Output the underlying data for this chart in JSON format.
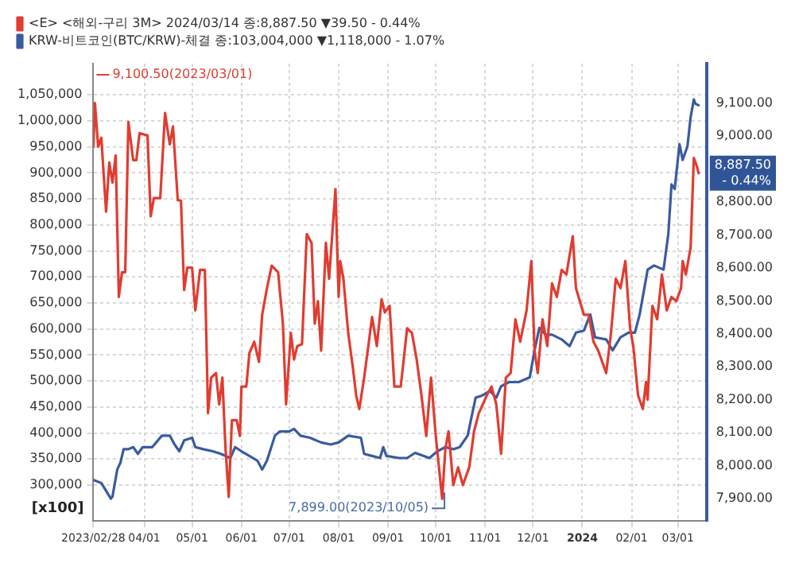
{
  "chart_data": {
    "type": "line",
    "legend": "top left",
    "grid": true,
    "marker": "none",
    "line_style": "solid",
    "xlim": [
      "2023-02-28",
      "2024-03-19"
    ],
    "xticks": [
      {
        "value": "2023-02-28",
        "label": "2023/02/28"
      },
      {
        "value": "2023-04-01",
        "label": "04/01"
      },
      {
        "value": "2023-05-01",
        "label": "05/01"
      },
      {
        "value": "2023-06-01",
        "label": "06/01"
      },
      {
        "value": "2023-07-01",
        "label": "07/01"
      },
      {
        "value": "2023-08-01",
        "label": "08/01"
      },
      {
        "value": "2023-09-01",
        "label": "09/01"
      },
      {
        "value": "2023-10-01",
        "label": "10/01"
      },
      {
        "value": "2023-11-01",
        "label": "11/01"
      },
      {
        "value": "2023-12-01",
        "label": "12/01"
      },
      {
        "value": "2024-01-01",
        "label": "2024"
      },
      {
        "value": "2024-02-01",
        "label": "02/01"
      },
      {
        "value": "2024-03-01",
        "label": "03/01"
      }
    ],
    "ylim": [
      231000,
      1110000
    ],
    "yticks": [
      {
        "value": 300000,
        "label": "300,000"
      },
      {
        "value": 350000,
        "label": "350,000"
      },
      {
        "value": 400000,
        "label": "400,000"
      },
      {
        "value": 450000,
        "label": "450,000"
      },
      {
        "value": 500000,
        "label": "500,000"
      },
      {
        "value": 550000,
        "label": "550,000"
      },
      {
        "value": 600000,
        "label": "600,000"
      },
      {
        "value": 650000,
        "label": "650,000"
      },
      {
        "value": 700000,
        "label": "700,000"
      },
      {
        "value": 750000,
        "label": "750,000"
      },
      {
        "value": 800000,
        "label": "800,000"
      },
      {
        "value": 850000,
        "label": "850,000"
      },
      {
        "value": 900000,
        "label": "900,000"
      },
      {
        "value": 950000,
        "label": "950,000"
      },
      {
        "value": 1000000,
        "label": "1,000,000"
      },
      {
        "value": 1050000,
        "label": "1,050,000"
      }
    ],
    "y2lim": [
      7832,
      9220
    ],
    "y2ticks": [
      {
        "value": 7900,
        "label": "7,900.00"
      },
      {
        "value": 8000,
        "label": "8,000.00"
      },
      {
        "value": 8100,
        "label": "8,100.00"
      },
      {
        "value": 8200,
        "label": "8,200.00"
      },
      {
        "value": 8300,
        "label": "8,300.00"
      },
      {
        "value": 8400,
        "label": "8,400.00"
      },
      {
        "value": 8500,
        "label": "8,500.00"
      },
      {
        "value": 8600,
        "label": "8,600.00"
      },
      {
        "value": 8700,
        "label": "8,700.00"
      },
      {
        "value": 8800,
        "label": "8,800.00"
      },
      {
        "value": 9000,
        "label": "9,000.00"
      },
      {
        "value": 9100,
        "label": "9,100.00"
      }
    ],
    "series": [
      {
        "name": "<E> <해외-구리 3M> 2024/03/14 종:8,887.50 ▼39.50 - 0.44%",
        "color": "#e03c31",
        "axis": "y2",
        "x": [
          "2023-02-28",
          "2023-03-01",
          "2023-03-03",
          "2023-03-05",
          "2023-03-08",
          "2023-03-10",
          "2023-03-12",
          "2023-03-14",
          "2023-03-16",
          "2023-03-18",
          "2023-03-20",
          "2023-03-22",
          "2023-03-25",
          "2023-03-27",
          "2023-03-29",
          "2023-04-03",
          "2023-04-05",
          "2023-04-07",
          "2023-04-11",
          "2023-04-14",
          "2023-04-17",
          "2023-04-19",
          "2023-04-22",
          "2023-04-24",
          "2023-04-26",
          "2023-04-28",
          "2023-05-01",
          "2023-05-03",
          "2023-05-06",
          "2023-05-09",
          "2023-05-11",
          "2023-05-13",
          "2023-05-16",
          "2023-05-18",
          "2023-05-20",
          "2023-05-22",
          "2023-05-24",
          "2023-05-26",
          "2023-05-29",
          "2023-05-31",
          "2023-06-01",
          "2023-06-04",
          "2023-06-06",
          "2023-06-09",
          "2023-06-12",
          "2023-06-14",
          "2023-06-17",
          "2023-06-20",
          "2023-06-24",
          "2023-06-27",
          "2023-06-29",
          "2023-07-02",
          "2023-07-04",
          "2023-07-06",
          "2023-07-09",
          "2023-07-12",
          "2023-07-15",
          "2023-07-17",
          "2023-07-19",
          "2023-07-21",
          "2023-07-24",
          "2023-07-26",
          "2023-07-30",
          "2023-08-01",
          "2023-08-02",
          "2023-08-04",
          "2023-08-07",
          "2023-08-10",
          "2023-08-12",
          "2023-08-14",
          "2023-08-17",
          "2023-08-20",
          "2023-08-22",
          "2023-08-25",
          "2023-08-28",
          "2023-08-30",
          "2023-09-02",
          "2023-09-05",
          "2023-09-09",
          "2023-09-13",
          "2023-09-16",
          "2023-09-19",
          "2023-09-22",
          "2023-09-25",
          "2023-09-28",
          "2023-10-01",
          "2023-10-05",
          "2023-10-07",
          "2023-10-09",
          "2023-10-12",
          "2023-10-15",
          "2023-10-18",
          "2023-10-22",
          "2023-10-25",
          "2023-10-28",
          "2023-11-02",
          "2023-11-05",
          "2023-11-08",
          "2023-11-11",
          "2023-11-14",
          "2023-11-17",
          "2023-11-20",
          "2023-11-23",
          "2023-11-27",
          "2023-11-30",
          "2023-12-02",
          "2023-12-04",
          "2023-12-07",
          "2023-12-10",
          "2023-12-13",
          "2023-12-16",
          "2023-12-19",
          "2023-12-22",
          "2023-12-26",
          "2023-12-28",
          "2024-01-02",
          "2024-01-05",
          "2024-01-08",
          "2024-01-11",
          "2024-01-16",
          "2024-01-19",
          "2024-01-22",
          "2024-01-25",
          "2024-01-28",
          "2024-01-31",
          "2024-02-02",
          "2024-02-05",
          "2024-02-08",
          "2024-02-10",
          "2024-02-11",
          "2024-02-14",
          "2024-02-17",
          "2024-02-20",
          "2024-02-23",
          "2024-02-26",
          "2024-02-29",
          "2024-03-03",
          "2024-03-04",
          "2024-03-06",
          "2024-03-09",
          "2024-03-11",
          "2024-03-13",
          "2024-03-14"
        ],
        "values": [
          8968,
          9100.5,
          8968,
          8995,
          8771,
          8920,
          8859,
          8941,
          8512,
          8587,
          8587,
          9043,
          8927,
          8927,
          9009,
          9002,
          8757,
          8812,
          8812,
          9070,
          8975,
          9029,
          8805,
          8805,
          8533,
          8601,
          8601,
          8471,
          8594,
          8594,
          8159,
          8267,
          8281,
          8186,
          8267,
          8050,
          7905,
          8138,
          8138,
          8090,
          8240,
          8240,
          8342,
          8376,
          8315,
          8458,
          8539,
          8607,
          8587,
          8431,
          8186,
          8403,
          8322,
          8363,
          8369,
          8703,
          8676,
          8431,
          8499,
          8349,
          8676,
          8567,
          8839,
          8512,
          8621,
          8567,
          8403,
          8295,
          8213,
          8172,
          8267,
          8376,
          8451,
          8363,
          8505,
          8465,
          8485,
          8240,
          8240,
          8417,
          8403,
          8322,
          8213,
          8090,
          8267,
          8090,
          7899,
          8050,
          8104,
          7941,
          7995,
          7941,
          7995,
          8104,
          8159,
          8213,
          8240,
          8186,
          8036,
          8267,
          8281,
          8444,
          8376,
          8471,
          8621,
          8349,
          8281,
          8444,
          8363,
          8553,
          8512,
          8594,
          8580,
          8696,
          8539,
          8458,
          8458,
          8376,
          8349,
          8281,
          8403,
          8567,
          8539,
          8621,
          8417,
          8363,
          8213,
          8172,
          8254,
          8200,
          8485,
          8444,
          8580,
          8471,
          8512,
          8499,
          8539,
          8621,
          8580,
          8662,
          8934,
          8907,
          8887.5
        ]
      },
      {
        "name": "KRW-비트코인(BTC/KRW)-체결 종:103,004,000 ▼1,118,000 - 1.07%",
        "color": "#3a5ba0",
        "x": [
          "2023-02-28",
          "2023-03-05",
          "2023-03-11",
          "2023-03-12",
          "2023-03-15",
          "2023-03-17",
          "2023-03-19",
          "2023-03-22",
          "2023-03-25",
          "2023-03-28",
          "2023-03-31",
          "2023-04-06",
          "2023-04-12",
          "2023-04-17",
          "2023-04-20",
          "2023-04-23",
          "2023-04-26",
          "2023-05-01",
          "2023-05-03",
          "2023-05-08",
          "2023-05-14",
          "2023-05-19",
          "2023-05-25",
          "2023-05-28",
          "2023-06-01",
          "2023-06-06",
          "2023-06-11",
          "2023-06-14",
          "2023-06-17",
          "2023-06-22",
          "2023-06-25",
          "2023-07-01",
          "2023-07-04",
          "2023-07-08",
          "2023-07-14",
          "2023-07-21",
          "2023-07-27",
          "2023-08-01",
          "2023-08-07",
          "2023-08-15",
          "2023-08-17",
          "2023-08-22",
          "2023-08-27",
          "2023-08-29",
          "2023-08-31",
          "2023-09-08",
          "2023-09-13",
          "2023-09-18",
          "2023-09-27",
          "2023-10-02",
          "2023-10-07",
          "2023-10-12",
          "2023-10-16",
          "2023-10-21",
          "2023-10-26",
          "2023-10-30",
          "2023-11-04",
          "2023-11-08",
          "2023-11-11",
          "2023-11-16",
          "2023-11-22",
          "2023-11-29",
          "2023-12-02",
          "2023-12-05",
          "2023-12-09",
          "2023-12-13",
          "2023-12-19",
          "2023-12-24",
          "2023-12-28",
          "2024-01-02",
          "2024-01-06",
          "2024-01-09",
          "2024-01-16",
          "2024-01-20",
          "2024-01-25",
          "2024-01-30",
          "2024-02-03",
          "2024-02-06",
          "2024-02-11",
          "2024-02-15",
          "2024-02-21",
          "2024-02-24",
          "2024-02-26",
          "2024-02-28",
          "2024-03-02",
          "2024-03-04",
          "2024-03-07",
          "2024-03-09",
          "2024-03-11",
          "2024-03-12",
          "2024-03-14"
        ],
        "values": [
          310000,
          304000,
          274000,
          278000,
          330000,
          343000,
          369000,
          369000,
          373000,
          360000,
          373000,
          373000,
          395000,
          395000,
          378000,
          365000,
          386000,
          391000,
          373000,
          369000,
          365000,
          360000,
          352000,
          373000,
          365000,
          356000,
          347000,
          330000,
          347000,
          395000,
          403000,
          403000,
          408000,
          395000,
          391000,
          382000,
          378000,
          382000,
          395000,
          391000,
          360000,
          356000,
          352000,
          373000,
          356000,
          352000,
          352000,
          362000,
          352000,
          365000,
          373000,
          369000,
          373000,
          395000,
          468000,
          472000,
          481000,
          468000,
          490000,
          498000,
          498000,
          507000,
          559000,
          602000,
          589000,
          589000,
          580000,
          567000,
          593000,
          597000,
          628000,
          584000,
          580000,
          559000,
          584000,
          593000,
          593000,
          628000,
          714000,
          722000,
          714000,
          783000,
          878000,
          869000,
          955000,
          925000,
          951000,
          1007000,
          1041000,
          1033000,
          1030040
        ]
      }
    ],
    "annotations": [
      "9,100.50(2023/03/01)",
      "7,899.00(2023/10/05)",
      "8,887.50 - 0.44%",
      "[x100]"
    ]
  }
}
